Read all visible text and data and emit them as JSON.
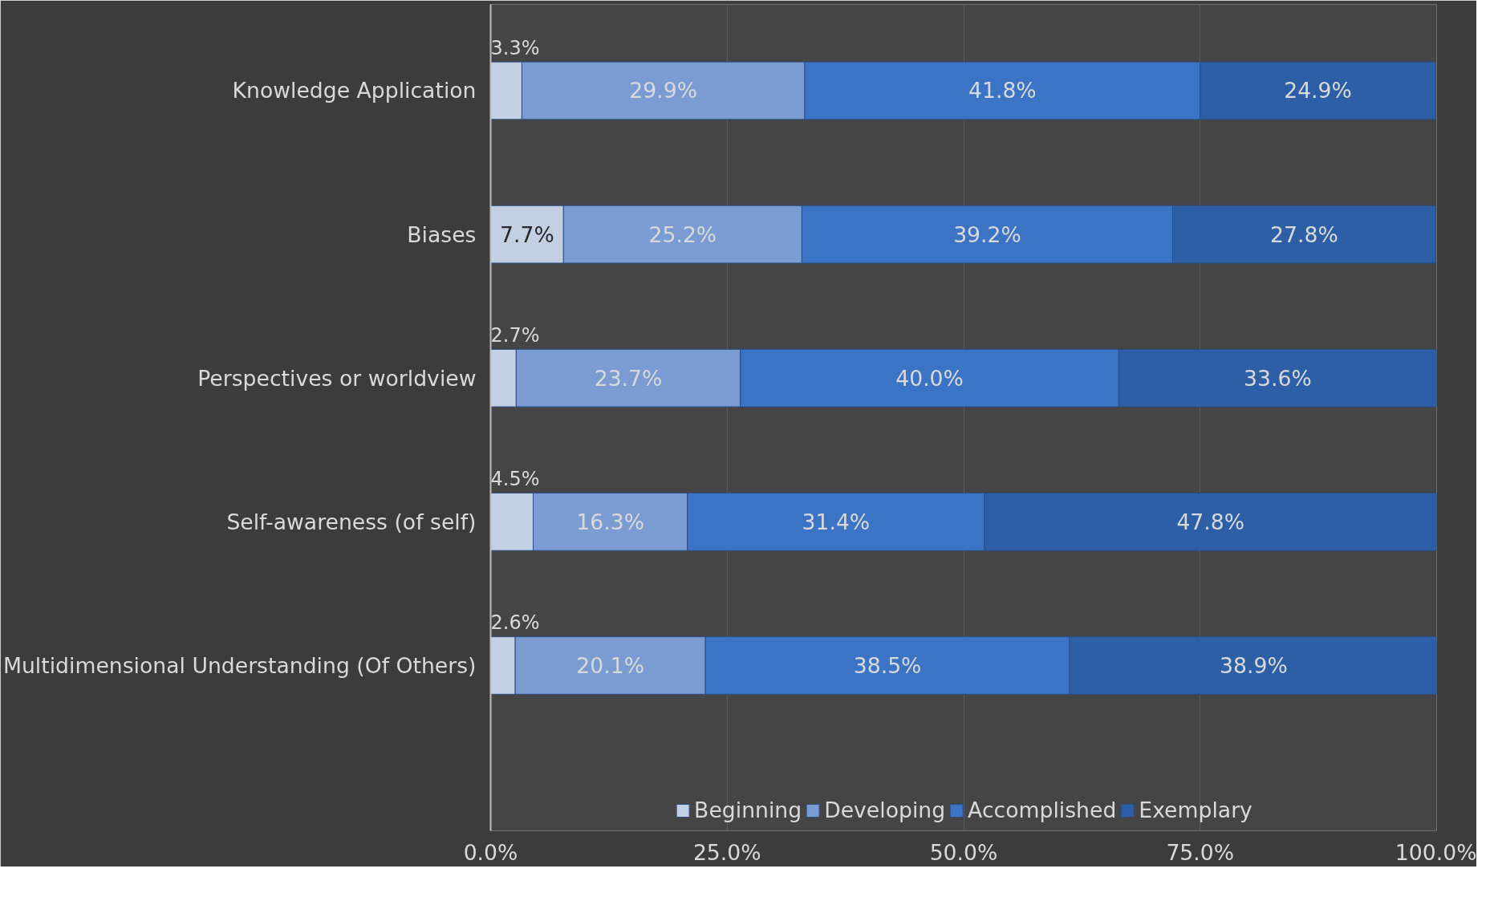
{
  "chart_data": {
    "type": "bar",
    "orientation": "horizontal",
    "stacked": true,
    "categories": [
      "Knowledge Application",
      "Biases",
      "Perspectives or worldview",
      "Self-awareness (of self)",
      "Multidimensional Understanding (Of Others)"
    ],
    "series": [
      {
        "name": "Beginning",
        "color": "#c3cfe3",
        "values": [
          3.3,
          7.7,
          2.7,
          4.5,
          2.6
        ],
        "value_labels": [
          "3.3%",
          "7.7%",
          "2.7%",
          "4.5%",
          "2.6%"
        ]
      },
      {
        "name": "Developing",
        "color": "#7b9bd3",
        "values": [
          29.9,
          25.2,
          23.7,
          16.3,
          20.1
        ],
        "value_labels": [
          "29.9%",
          "25.2%",
          "23.7%",
          "16.3%",
          "20.1%"
        ]
      },
      {
        "name": "Accomplished",
        "color": "#3b74c4",
        "values": [
          41.8,
          39.2,
          40.0,
          31.4,
          38.5
        ],
        "value_labels": [
          "41.8%",
          "39.2%",
          "40.0%",
          "31.4%",
          "38.5%"
        ]
      },
      {
        "name": "Exemplary",
        "color": "#2d5fa6",
        "values": [
          24.9,
          27.8,
          33.6,
          47.8,
          38.9
        ],
        "value_labels": [
          "24.9%",
          "27.8%",
          "33.6%",
          "47.8%",
          "38.9%"
        ]
      }
    ],
    "xlim": [
      0,
      100
    ],
    "xticks": [
      {
        "value": 0,
        "label": "0.0%"
      },
      {
        "value": 25,
        "label": "25.0%"
      },
      {
        "value": 50,
        "label": "50.0%"
      },
      {
        "value": 75,
        "label": "75.0%"
      },
      {
        "value": 100,
        "label": "100.0%"
      }
    ],
    "grid": "x",
    "legend": "bottom"
  }
}
